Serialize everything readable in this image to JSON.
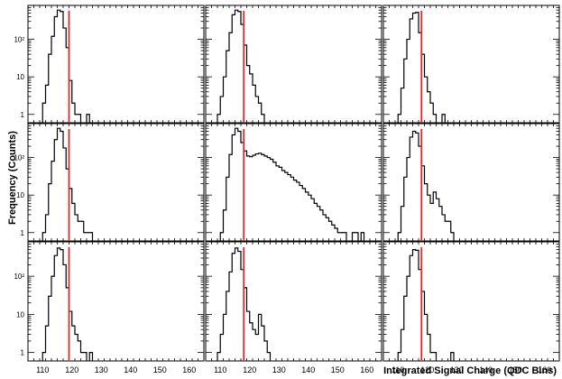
{
  "chart_data": {
    "type": "histogram-grid",
    "title": "",
    "xlabel": "Integrated Signal Charge (QDC Bins)",
    "ylabel": "Frequency (Counts)",
    "yscale": "log",
    "xlim": [
      105,
      165
    ],
    "ylim": [
      0.6,
      800
    ],
    "rows": 3,
    "cols": 3,
    "xticks": [
      "110",
      "120",
      "130",
      "140",
      "150",
      "160"
    ],
    "yticks": [
      {
        "label": "1",
        "value": 1
      },
      {
        "label": "10",
        "value": 10
      },
      {
        "label": "10²",
        "value": 100
      },
      {
        "label": "10³",
        "value": 1000
      }
    ],
    "cut_color": "#e4262c",
    "line_color": "#000000",
    "panels": [
      {
        "cut": 119,
        "hist": [
          [
            110,
            2
          ],
          [
            111,
            6
          ],
          [
            112,
            40
          ],
          [
            113,
            120
          ],
          [
            114,
            400
          ],
          [
            115,
            600
          ],
          [
            116,
            550
          ],
          [
            117,
            200
          ],
          [
            118,
            60
          ],
          [
            119,
            8
          ],
          [
            120,
            2
          ],
          [
            121,
            1
          ],
          [
            122,
            1
          ],
          [
            125,
            1
          ]
        ]
      },
      {
        "cut": 118,
        "hist": [
          [
            109,
            1
          ],
          [
            110,
            3
          ],
          [
            111,
            10
          ],
          [
            112,
            50
          ],
          [
            113,
            150
          ],
          [
            114,
            450
          ],
          [
            115,
            600
          ],
          [
            116,
            550
          ],
          [
            117,
            250
          ],
          [
            118,
            70
          ],
          [
            119,
            20
          ],
          [
            120,
            12
          ],
          [
            121,
            6
          ],
          [
            122,
            3
          ],
          [
            123,
            2
          ],
          [
            124,
            1
          ]
        ]
      },
      {
        "cut": 118,
        "hist": [
          [
            110,
            1
          ],
          [
            111,
            5
          ],
          [
            112,
            30
          ],
          [
            113,
            100
          ],
          [
            114,
            350
          ],
          [
            115,
            500
          ],
          [
            116,
            520
          ],
          [
            117,
            150
          ],
          [
            118,
            40
          ],
          [
            119,
            10
          ],
          [
            120,
            4
          ],
          [
            121,
            2
          ],
          [
            122,
            1
          ],
          [
            125,
            1
          ]
        ]
      },
      {
        "cut": 119,
        "hist": [
          [
            110,
            1
          ],
          [
            111,
            3
          ],
          [
            112,
            20
          ],
          [
            113,
            80
          ],
          [
            114,
            300
          ],
          [
            115,
            600
          ],
          [
            116,
            500
          ],
          [
            117,
            180
          ],
          [
            118,
            50
          ],
          [
            119,
            15
          ],
          [
            120,
            6
          ],
          [
            121,
            3
          ],
          [
            122,
            2
          ],
          [
            123,
            2
          ],
          [
            124,
            1
          ],
          [
            125,
            1
          ],
          [
            126,
            1
          ]
        ]
      },
      {
        "cut": 118,
        "hist": [
          [
            110,
            1
          ],
          [
            111,
            4
          ],
          [
            112,
            30
          ],
          [
            113,
            120
          ],
          [
            114,
            400
          ],
          [
            115,
            600
          ],
          [
            116,
            500
          ],
          [
            117,
            250
          ],
          [
            118,
            150
          ],
          [
            119,
            110
          ],
          [
            120,
            105
          ],
          [
            121,
            115
          ],
          [
            122,
            125
          ],
          [
            123,
            130
          ],
          [
            124,
            120
          ],
          [
            125,
            110
          ],
          [
            126,
            100
          ],
          [
            127,
            90
          ],
          [
            128,
            75
          ],
          [
            129,
            60
          ],
          [
            130,
            55
          ],
          [
            131,
            45
          ],
          [
            132,
            40
          ],
          [
            133,
            35
          ],
          [
            134,
            30
          ],
          [
            135,
            25
          ],
          [
            136,
            22
          ],
          [
            137,
            18
          ],
          [
            138,
            15
          ],
          [
            139,
            12
          ],
          [
            140,
            10
          ],
          [
            141,
            8
          ],
          [
            142,
            6
          ],
          [
            143,
            5
          ],
          [
            144,
            4
          ],
          [
            145,
            3
          ],
          [
            146,
            2.5
          ],
          [
            147,
            2
          ],
          [
            148,
            1.6
          ],
          [
            149,
            1.3
          ],
          [
            150,
            1
          ],
          [
            151,
            1
          ],
          [
            152,
            1
          ],
          [
            155,
            1
          ],
          [
            156,
            1
          ],
          [
            158,
            1
          ]
        ]
      },
      {
        "cut": 118,
        "hist": [
          [
            110,
            1
          ],
          [
            111,
            5
          ],
          [
            112,
            30
          ],
          [
            113,
            100
          ],
          [
            114,
            350
          ],
          [
            115,
            500
          ],
          [
            116,
            450
          ],
          [
            117,
            200
          ],
          [
            118,
            60
          ],
          [
            119,
            20
          ],
          [
            120,
            10
          ],
          [
            121,
            6
          ],
          [
            122,
            12
          ],
          [
            123,
            8
          ],
          [
            124,
            5
          ],
          [
            125,
            3
          ],
          [
            126,
            2
          ],
          [
            127,
            2
          ],
          [
            128,
            1
          ]
        ]
      },
      {
        "cut": 119,
        "hist": [
          [
            110,
            1
          ],
          [
            111,
            5
          ],
          [
            112,
            30
          ],
          [
            113,
            100
          ],
          [
            114,
            350
          ],
          [
            115,
            550
          ],
          [
            116,
            500
          ],
          [
            117,
            200
          ],
          [
            118,
            50
          ],
          [
            119,
            12
          ],
          [
            120,
            5
          ],
          [
            121,
            3
          ],
          [
            122,
            2
          ],
          [
            123,
            1
          ],
          [
            124,
            1
          ],
          [
            126,
            1
          ]
        ]
      },
      {
        "cut": 118,
        "hist": [
          [
            109,
            1
          ],
          [
            110,
            3
          ],
          [
            111,
            10
          ],
          [
            112,
            40
          ],
          [
            113,
            130
          ],
          [
            114,
            400
          ],
          [
            115,
            550
          ],
          [
            116,
            450
          ],
          [
            117,
            150
          ],
          [
            118,
            50
          ],
          [
            119,
            12
          ],
          [
            120,
            6
          ],
          [
            121,
            4
          ],
          [
            122,
            3
          ],
          [
            123,
            10
          ],
          [
            124,
            5
          ],
          [
            125,
            2
          ],
          [
            126,
            1
          ]
        ]
      },
      {
        "cut": 118,
        "hist": [
          [
            110,
            1
          ],
          [
            111,
            4
          ],
          [
            112,
            30
          ],
          [
            113,
            100
          ],
          [
            114,
            350
          ],
          [
            115,
            500
          ],
          [
            116,
            480
          ],
          [
            117,
            150
          ],
          [
            118,
            40
          ],
          [
            119,
            10
          ],
          [
            120,
            3
          ],
          [
            121,
            1
          ],
          [
            122,
            1
          ],
          [
            128,
            1
          ]
        ]
      }
    ]
  }
}
